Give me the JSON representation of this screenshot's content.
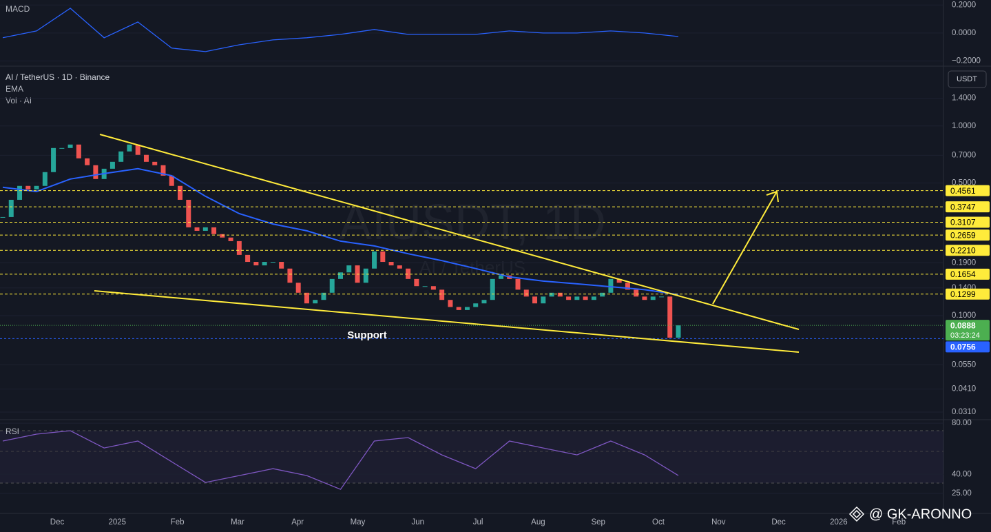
{
  "header": {
    "title": "AI / TetherUS · 1D · Binance",
    "legend": [
      "EMA",
      "Vol · AI"
    ]
  },
  "currency": "USDT",
  "watermark": {
    "symbol": "AIUSDT, 1D",
    "name": "AI / TetherUS"
  },
  "annotation": "Support",
  "credit": "@ GK-ARONNO",
  "time_axis": [
    "Dec",
    "2025",
    "Feb",
    "Mar",
    "Apr",
    "May",
    "Jun",
    "Jul",
    "Aug",
    "Sep",
    "Oct",
    "Nov",
    "Dec",
    "2026",
    "Feb"
  ],
  "chart_data": [
    {
      "type": "line",
      "title": "MACD",
      "series": [
        {
          "color": "#2962ff",
          "values": [
            -0.034,
            0.015,
            0.177,
            -0.034,
            0.079,
            -0.108,
            -0.133,
            -0.084,
            -0.049,
            -0.034,
            -0.01,
            0.025,
            -0.01,
            -0.01,
            -0.01,
            0.015,
            0,
            0,
            0.015,
            0,
            -0.025
          ]
        }
      ],
      "ylim": [
        -0.232,
        0.236
      ],
      "yticks": [
        {
          "value": 0.2,
          "label": "0.2000"
        },
        {
          "value": 0,
          "label": "0.0000"
        },
        {
          "value": -0.2,
          "label": "−0.2000"
        }
      ]
    },
    {
      "type": "candlestick",
      "log_scale": true,
      "up_color": "#26a69a",
      "down_color": "#ef5350",
      "values": [
        0.331,
        0.408,
        0.483,
        0.463,
        0.483,
        0.571,
        0.765,
        0.765,
        0.798,
        0.675,
        0.621,
        0.525,
        0.595,
        0.647,
        0.734,
        0.798,
        0.704,
        0.647,
        0.621,
        0.547,
        0.483,
        0.408,
        0.292,
        0.28,
        0.292,
        0.269,
        0.258,
        0.247,
        0.209,
        0.192,
        0.184,
        0.192,
        0.192,
        0.177,
        0.149,
        0.132,
        0.116,
        0.121,
        0.132,
        0.156,
        0.169,
        0.184,
        0.149,
        0.177,
        0.218,
        0.192,
        0.184,
        0.177,
        0.156,
        0.143,
        0.143,
        0.137,
        0.121,
        0.111,
        0.107,
        0.111,
        0.116,
        0.121,
        0.156,
        0.163,
        0.156,
        0.137,
        0.126,
        0.116,
        0.126,
        0.132,
        0.126,
        0.121,
        0.126,
        0.121,
        0.126,
        0.132,
        0.156,
        0.149,
        0.137,
        0.126,
        0.121,
        0.126,
        0.126,
        0.0765,
        0.0888
      ],
      "ema": {
        "color": "#2962ff",
        "values": [
          0.475,
          0.451,
          0.525,
          0.561,
          0.595,
          0.547,
          0.426,
          0.345,
          0.304,
          0.28,
          0.247,
          0.233,
          0.212,
          0.195,
          0.177,
          0.16,
          0.152,
          0.147,
          0.142,
          0.137,
          0.129
        ]
      },
      "ylim": [
        0.0285,
        2.05
      ],
      "yticks": [
        {
          "value": 1.4,
          "label": "1.4000"
        },
        {
          "value": 1,
          "label": "1.0000"
        },
        {
          "value": 0.7,
          "label": "0.7000"
        },
        {
          "value": 0.5,
          "label": "0.5000"
        },
        {
          "value": 0.19,
          "label": "0.1900"
        },
        {
          "value": 0.14,
          "label": "0.1400"
        },
        {
          "value": 0.1,
          "label": "0.1000"
        },
        {
          "value": 0.055,
          "label": "0.0550"
        },
        {
          "value": 0.041,
          "label": "0.0410"
        },
        {
          "value": 0.031,
          "label": "0.0310"
        }
      ],
      "levels": {
        "color": "#ffeb3b",
        "values": [
          0.4561,
          0.3747,
          0.3107,
          0.2659,
          {
            "value": 0.221,
            "label": "0.2210"
          },
          0.1654,
          0.1299
        ]
      },
      "last_price": {
        "value": 0.0888,
        "countdown": "03:23:24",
        "color": "#4caf50"
      },
      "support_price": {
        "value": 0.0756,
        "color": "#2962ff"
      }
    },
    {
      "type": "line",
      "title": "RSI",
      "series": [
        {
          "color": "#7e57c2",
          "values": [
            66,
            71.4,
            74.1,
            60.6,
            66,
            49.8,
            33.6,
            39,
            44.4,
            39,
            28.2,
            66,
            68.7,
            55.2,
            44.4,
            66,
            60.6,
            55.2,
            66,
            55.2,
            39
          ]
        }
      ],
      "ylim": [
        9.4,
        82.2
      ],
      "yticks": [
        {
          "value": 80,
          "label": "80.00"
        },
        {
          "value": 40,
          "label": "40.00"
        },
        {
          "value": 25,
          "label": "25.00"
        }
      ]
    }
  ]
}
